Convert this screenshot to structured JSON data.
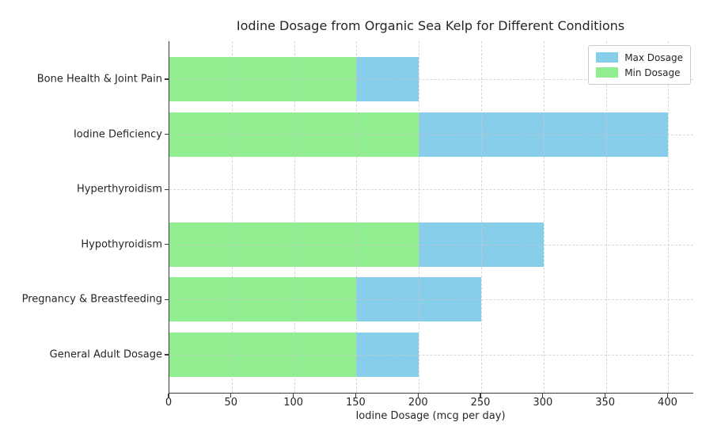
{
  "chart_data": {
    "type": "bar",
    "orientation": "horizontal",
    "title": "Iodine Dosage from Organic Sea Kelp for Different Conditions",
    "xlabel": "Iodine Dosage (mcg per day)",
    "ylabel": "",
    "categories_order": "top-to-bottom",
    "categories": [
      "Bone Health & Joint Pain",
      "Iodine Deficiency",
      "Hyperthyroidism",
      "Hypothyroidism",
      "Pregnancy & Breastfeeding",
      "General Adult Dosage"
    ],
    "series": [
      {
        "name": "Max Dosage",
        "color": "#87CEEB",
        "values": [
          200,
          400,
          0,
          300,
          250,
          200
        ]
      },
      {
        "name": "Min Dosage",
        "color": "#90EE90",
        "values": [
          150,
          200,
          0,
          200,
          150,
          150
        ]
      }
    ],
    "bar_render": "overlay-from-zero",
    "x_ticks": [
      0,
      50,
      100,
      150,
      200,
      250,
      300,
      350,
      400
    ],
    "xlim": [
      0,
      420
    ],
    "grid": true,
    "grid_style": "dashed",
    "legend_position": "upper right"
  },
  "legend": {
    "items": [
      {
        "label": "Max Dosage",
        "color": "#87CEEB"
      },
      {
        "label": "Min Dosage",
        "color": "#90EE90"
      }
    ]
  },
  "colors": {
    "max_dosage": "#87CEEB",
    "min_dosage": "#90EE90",
    "text": "#262626",
    "spine": "#3a3a3a",
    "grid": "#cacaca",
    "background": "#ffffff",
    "legend_border": "#cccccc"
  }
}
